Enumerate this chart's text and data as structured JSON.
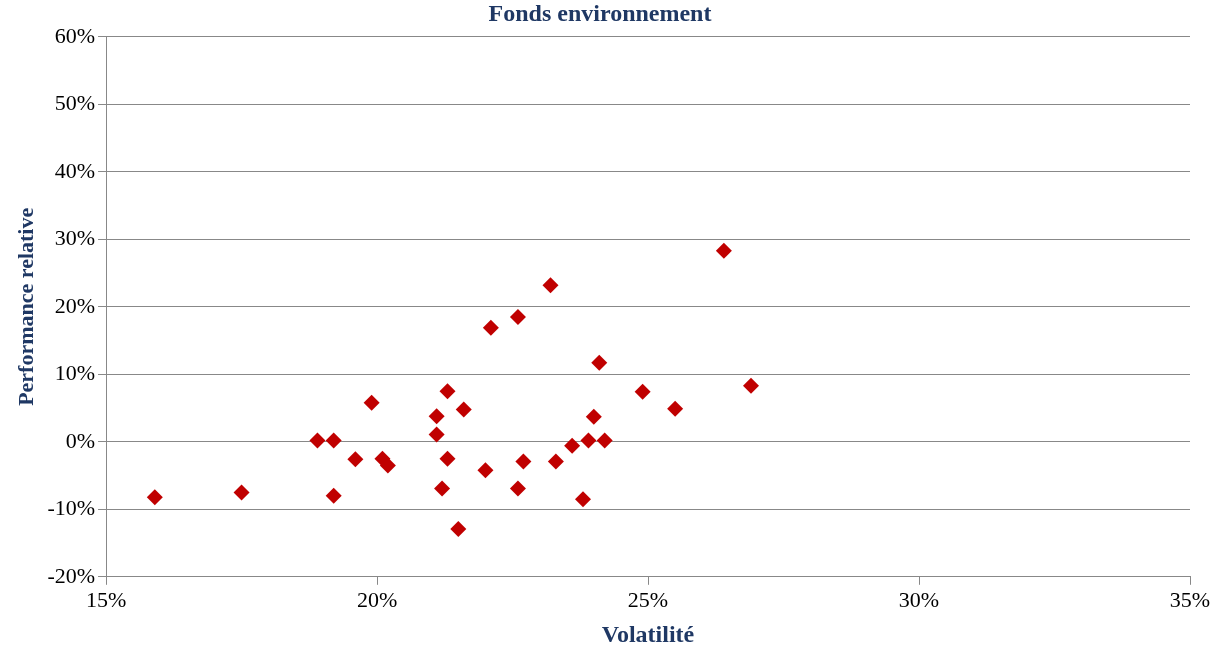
{
  "chart_data": {
    "type": "scatter",
    "title": "Fonds environnement",
    "xlabel": "Volatilité",
    "ylabel": "Performance relative",
    "x": [
      15.9,
      17.5,
      18.9,
      19.2,
      19.2,
      19.6,
      19.9,
      20.1,
      20.2,
      21.1,
      21.1,
      21.3,
      21.2,
      21.3,
      21.6,
      21.5,
      22.0,
      22.1,
      22.6,
      22.7,
      22.6,
      23.2,
      23.3,
      23.6,
      23.8,
      23.9,
      24.1,
      24.0,
      24.2,
      24.9,
      25.5,
      26.4,
      26.9
    ],
    "series": [
      {
        "color": "#c00000",
        "values": [
          -8.2,
          -7.5,
          0.2,
          0.2,
          -8.0,
          -2.6,
          5.8,
          -2.5,
          -3.5,
          3.8,
          1.1,
          7.5,
          -6.9,
          -2.5,
          4.8,
          -12.9,
          -4.2,
          16.9,
          18.5,
          -2.9,
          -6.9,
          23.2,
          -2.9,
          -0.6,
          -8.5,
          0.2,
          11.7,
          3.7,
          0.2,
          7.4,
          4.9,
          28.3,
          8.3
        ]
      }
    ],
    "xlim": [
      15,
      35
    ],
    "xticks": [
      {
        "value": 15,
        "label": "15%"
      },
      {
        "value": 20,
        "label": "20%"
      },
      {
        "value": 25,
        "label": "25%"
      },
      {
        "value": 30,
        "label": "30%"
      },
      {
        "value": 35,
        "label": "35%"
      }
    ],
    "ylim": [
      -20,
      60
    ],
    "yticks": [
      {
        "value": -20,
        "label": "-20%"
      },
      {
        "value": -10,
        "label": "-10%"
      },
      {
        "value": 0,
        "label": "0%"
      },
      {
        "value": 10,
        "label": "10%"
      },
      {
        "value": 20,
        "label": "20%"
      },
      {
        "value": 30,
        "label": "30%"
      },
      {
        "value": 40,
        "label": "40%"
      },
      {
        "value": 50,
        "label": "50%"
      },
      {
        "value": 60,
        "label": "60%"
      }
    ],
    "grid": "y",
    "marker": "diamond"
  }
}
